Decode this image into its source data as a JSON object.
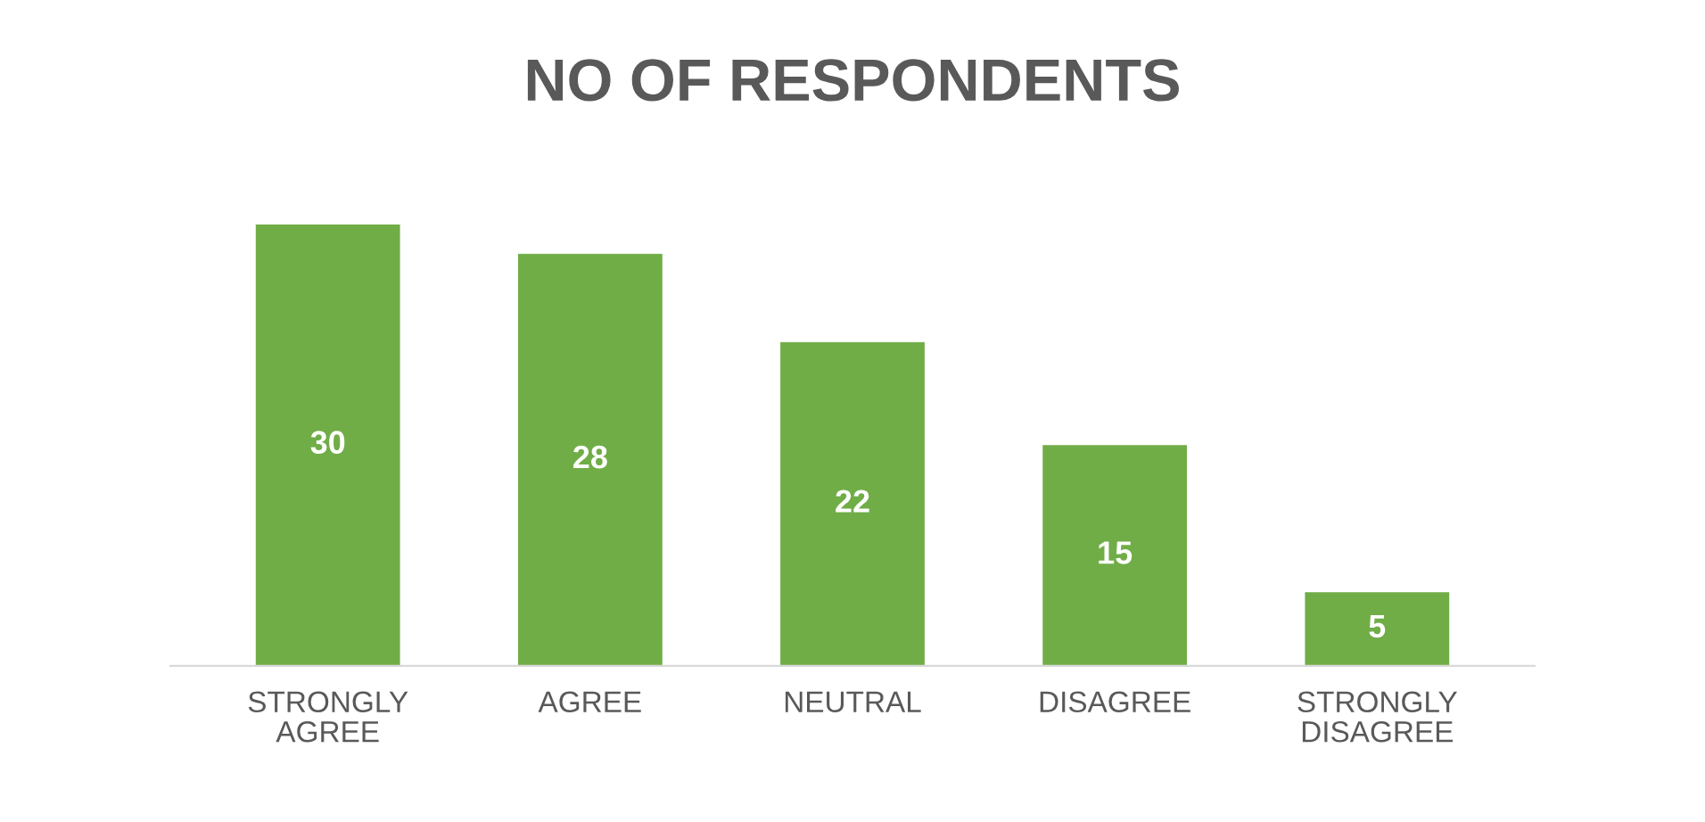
{
  "chart_data": {
    "type": "bar",
    "title": "NO OF RESPONDENTS",
    "categories": [
      "STRONGLY AGREE",
      "AGREE",
      "NEUTRAL",
      "DISAGREE",
      "STRONGLY DISAGREE"
    ],
    "values": [
      30,
      28,
      22,
      15,
      5
    ],
    "color": "#70ad47",
    "data_labels": true,
    "tick_labels": "x",
    "legend": false,
    "grid": false
  }
}
